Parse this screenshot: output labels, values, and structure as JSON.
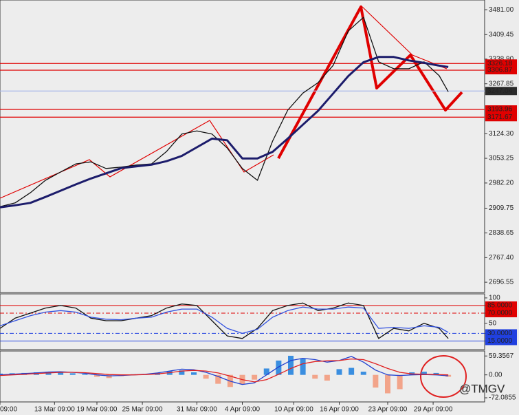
{
  "chart_data": [
    {
      "type": "line",
      "xlim": [
        0,
        160
      ],
      "ylim": [
        2667,
        3509
      ],
      "yticks": [
        {
          "value": 3481,
          "label": "3481.00"
        },
        {
          "value": 3409.45,
          "label": "3409.45"
        },
        {
          "value": 3338.9,
          "label": "3338.90"
        },
        {
          "value": 3267.85,
          "label": "3267.85"
        },
        {
          "value": 3124.3,
          "label": "3124.30"
        },
        {
          "value": 3053.25,
          "label": "3053.25"
        },
        {
          "value": 2982.2,
          "label": "2982.20"
        },
        {
          "value": 2909.75,
          "label": "2909.75"
        },
        {
          "value": 2838.65,
          "label": "2838.65"
        },
        {
          "value": 2767.4,
          "label": "2767.40"
        },
        {
          "value": 2696.55,
          "label": "2696.55"
        }
      ],
      "x": [
        0,
        5,
        10,
        15,
        20,
        25,
        30,
        35,
        40,
        45,
        50,
        55,
        60,
        65,
        70,
        75,
        80,
        85,
        90,
        95,
        100,
        105,
        110,
        115,
        120,
        125,
        130,
        135,
        140,
        145,
        148
      ],
      "series": [
        {
          "color": "#111111",
          "values": [
            2914,
            2925,
            2954,
            2990,
            3014,
            3037,
            3043,
            3024,
            3028,
            3034,
            3037,
            3073,
            3123,
            3132,
            3123,
            3083,
            3024,
            2990,
            3103,
            3192,
            3241,
            3271,
            3321,
            3420,
            3459,
            3331,
            3311,
            3311,
            3331,
            3291,
            3245
          ]
        },
        {
          "color": "#1c1c6b",
          "values": [
            2912,
            2918,
            2925,
            2942,
            2960,
            2978,
            2995,
            3010,
            3025,
            3030,
            3035,
            3045,
            3060,
            3085,
            3110,
            3105,
            3053,
            3053,
            3072,
            3110,
            3150,
            3190,
            3240,
            3290,
            3330,
            3345,
            3345,
            3335,
            3328,
            3320,
            3316
          ]
        }
      ],
      "levels": [
        {
          "value": 3326.18,
          "color": "#e00000",
          "box": "#e00000"
        },
        {
          "value": 3306.87,
          "color": "#e00000",
          "box": "#e00000"
        },
        {
          "value": 3247.04,
          "color": "#a9b9ea",
          "box": "#2b2b2b"
        },
        {
          "value": 3193.96,
          "color": "#e00000",
          "box": "#e00000"
        },
        {
          "value": 3171.67,
          "color": "#e00000",
          "box": "#e00000"
        }
      ]
    },
    {
      "type": "line",
      "xlim": [
        0,
        160
      ],
      "ylim": [
        -2,
        108
      ],
      "yticks": [
        100,
        {
          "value": 85,
          "label": "85.0000",
          "color": "#e00000"
        },
        {
          "value": 70,
          "label": "70.0000",
          "color": "#e00000",
          "dash": true
        },
        50,
        {
          "value": 30,
          "label": "30.0000",
          "color": "#2040e0",
          "dash": true
        },
        {
          "value": 15,
          "label": "15.0000",
          "color": "#2040e0"
        }
      ],
      "x": [
        0,
        5,
        10,
        15,
        20,
        25,
        30,
        35,
        40,
        45,
        50,
        55,
        60,
        65,
        70,
        75,
        80,
        85,
        90,
        95,
        100,
        105,
        110,
        115,
        120,
        125,
        130,
        135,
        140,
        145,
        148
      ],
      "series": [
        {
          "color": "#111111",
          "values": [
            40,
            60,
            70,
            80,
            85,
            80,
            60,
            55,
            55,
            60,
            65,
            80,
            88,
            85,
            55,
            25,
            20,
            40,
            75,
            85,
            90,
            75,
            80,
            90,
            85,
            20,
            40,
            35,
            50,
            40,
            20
          ]
        },
        {
          "color": "#3050e0",
          "values": [
            45,
            55,
            65,
            72,
            75,
            72,
            62,
            58,
            57,
            60,
            62,
            72,
            78,
            78,
            62,
            40,
            30,
            38,
            62,
            75,
            82,
            78,
            78,
            82,
            80,
            40,
            42,
            40,
            45,
            42,
            32
          ]
        }
      ]
    },
    {
      "type": "bar",
      "xlim": [
        0,
        160
      ],
      "ylim": [
        -85,
        75
      ],
      "yticks": [
        59.3567,
        {
          "value": 0,
          "label": "0.00"
        },
        -72.0855
      ],
      "xticks": [
        {
          "value": 0,
          "label": "09:00"
        },
        {
          "value": 18,
          "label": "13 Mar 09:00"
        },
        {
          "value": 32,
          "label": "19 Mar 09:00"
        },
        {
          "value": 47,
          "label": "25 Mar 09:00"
        },
        {
          "value": 65,
          "label": "31 Mar 09:00"
        },
        {
          "value": 80,
          "label": "4 Apr 09:00"
        },
        {
          "value": 97,
          "label": "10 Apr 09:00"
        },
        {
          "value": 112,
          "label": "16 Apr 09:00"
        },
        {
          "value": 128,
          "label": "23 Apr 09:00"
        },
        {
          "value": 143,
          "label": "29 Apr 09:00"
        }
      ],
      "annotation": "@TMGV",
      "x": [
        0,
        4,
        8,
        12,
        16,
        20,
        24,
        28,
        32,
        36,
        40,
        44,
        48,
        52,
        56,
        60,
        64,
        68,
        72,
        76,
        80,
        84,
        88,
        92,
        96,
        100,
        104,
        108,
        112,
        116,
        120,
        124,
        128,
        132,
        136,
        140,
        144,
        148
      ],
      "series": [
        {
          "type": "bar",
          "color": "#3a8ee0",
          "negative_color": "#f2a48a",
          "values": [
            4,
            5,
            6,
            8,
            10,
            8,
            5,
            3,
            -6,
            -10,
            -4,
            2,
            0,
            6,
            12,
            14,
            8,
            -12,
            -28,
            -38,
            -30,
            -15,
            20,
            45,
            60,
            50,
            -12,
            -18,
            18,
            22,
            10,
            -40,
            -58,
            -45,
            8,
            10,
            6,
            -6
          ]
        },
        {
          "type": "line",
          "color": "#2040d0",
          "values": [
            0,
            2,
            4,
            6,
            9,
            10,
            8,
            5,
            0,
            -3,
            -2,
            0,
            2,
            6,
            12,
            18,
            16,
            8,
            -5,
            -20,
            -30,
            -25,
            0,
            25,
            45,
            52,
            48,
            40,
            45,
            58,
            40,
            15,
            0,
            -2,
            0,
            1,
            0,
            -3
          ]
        },
        {
          "type": "line",
          "color": "#e02020",
          "values": [
            -2,
            0,
            2,
            4,
            6,
            8,
            8,
            7,
            4,
            1,
            0,
            0,
            1,
            3,
            7,
            12,
            14,
            12,
            6,
            -4,
            -15,
            -22,
            -15,
            2,
            20,
            35,
            42,
            44,
            45,
            50,
            48,
            35,
            20,
            8,
            3,
            2,
            1,
            0
          ]
        }
      ]
    }
  ]
}
